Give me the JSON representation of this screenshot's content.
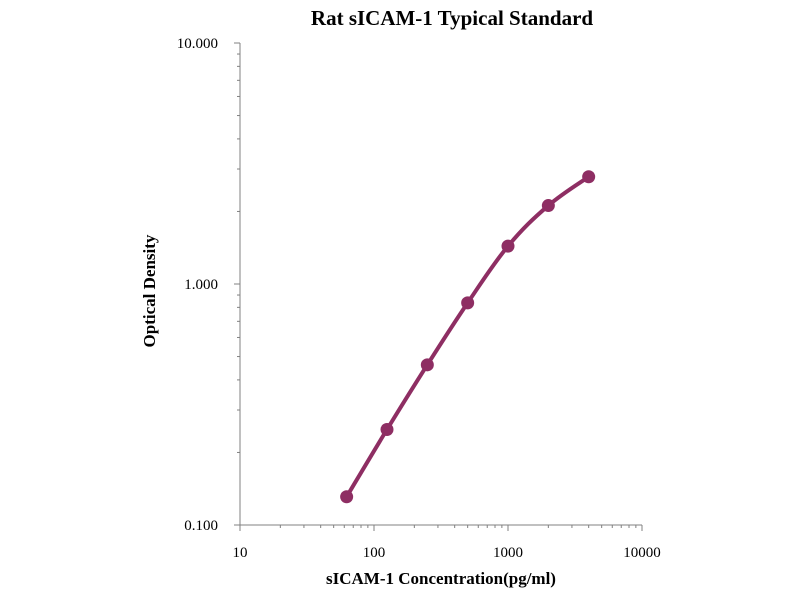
{
  "chart_data": {
    "type": "line",
    "title": "Rat  sICAM-1 Typical Standard",
    "xlabel": "sICAM-1 Concentration(pg/ml)",
    "ylabel": "Optical Density",
    "x_scale": "log",
    "y_scale": "log",
    "xlim": [
      10,
      10000
    ],
    "ylim": [
      0.1,
      10
    ],
    "x_ticks": [
      "10",
      "100",
      "1000",
      "10000"
    ],
    "y_ticks": [
      "0.100",
      "1.000",
      "10.000"
    ],
    "grid": false,
    "legend": "none",
    "color": "#8e2e63",
    "series": [
      {
        "x": [
          62.5,
          125,
          250,
          500,
          1000,
          2000,
          4000
        ],
        "y": [
          0.131,
          0.249,
          0.462,
          0.835,
          1.436,
          2.116,
          2.787
        ]
      }
    ]
  }
}
